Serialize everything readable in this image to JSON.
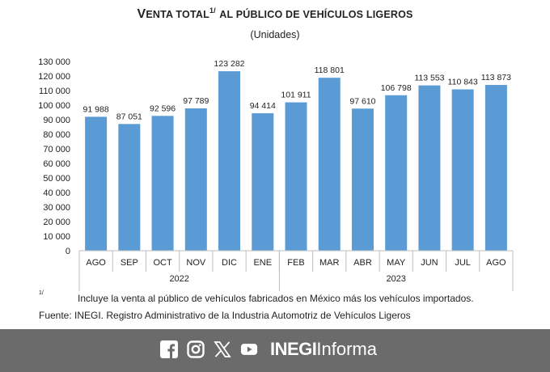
{
  "header": {
    "title_v": "V",
    "title_enta": "ENTA TOTAL",
    "title_sup": "1/",
    "title_rest": "AL PÚBLICO DE VEHÍCULOS LIGEROS",
    "subtitle": "(Unidades)"
  },
  "chart_data": {
    "type": "bar",
    "title": "Venta total al público de vehículos ligeros",
    "ylabel": "Unidades",
    "ylim": [
      0,
      130000
    ],
    "yticks": [
      0,
      10000,
      20000,
      30000,
      40000,
      50000,
      60000,
      70000,
      80000,
      90000,
      100000,
      110000,
      120000,
      130000
    ],
    "ytick_labels": [
      "0",
      "10 000",
      "20 000",
      "30 000",
      "40 000",
      "50 000",
      "60 000",
      "70 000",
      "80 000",
      "90 000",
      "100 000",
      "110 000",
      "120 000",
      "130 000"
    ],
    "categories": [
      "AGO",
      "SEP",
      "OCT",
      "NOV",
      "DIC",
      "ENE",
      "FEB",
      "MAR",
      "ABR",
      "MAY",
      "JUN",
      "JUL",
      "AGO"
    ],
    "values": [
      91988,
      87051,
      92596,
      97789,
      123282,
      94414,
      101911,
      118801,
      97610,
      106798,
      113553,
      110843,
      113873
    ],
    "value_labels": [
      "91 988",
      "87 051",
      "92 596",
      "97 789",
      "123 282",
      "94 414",
      "101 911",
      "118 801",
      "97 610",
      "106 798",
      "113 553",
      "110 843",
      "113 873"
    ],
    "year_groups": [
      {
        "label": "2022",
        "count": 6
      },
      {
        "label": "2023",
        "count": 7
      }
    ],
    "bar_color": "#5b9bd5",
    "grid": false
  },
  "notes": {
    "marker": "1/",
    "text": "Incluye la venta al público de vehículos fabricados en México más los vehículos importados.",
    "source": "Fuente: INEGI. Registro Administrativo de la Industria Automotriz de Vehículos Ligeros"
  },
  "footer": {
    "icons": [
      "facebook-icon",
      "instagram-icon",
      "x-icon",
      "youtube-icon"
    ],
    "brand_bold": "INEGI",
    "brand_light": "Informa",
    "background": "#6b6b6b"
  }
}
